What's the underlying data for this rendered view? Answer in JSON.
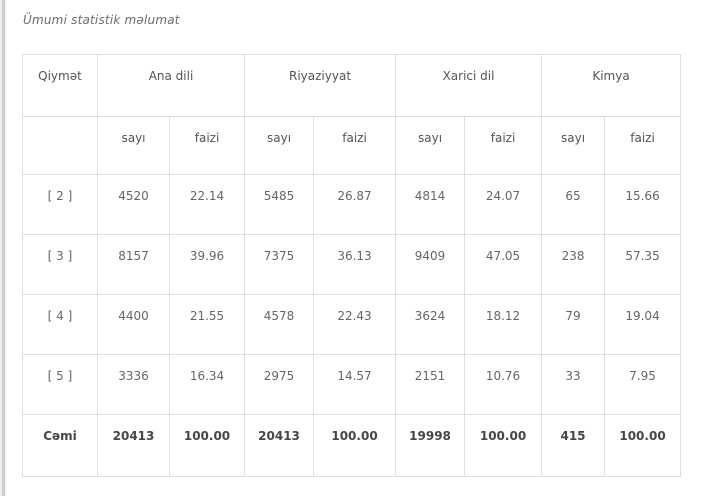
{
  "page": {
    "title": "Ümumi statistik məlumat"
  },
  "table": {
    "grade_column_header": "Qiymət",
    "subject_groups": [
      {
        "label": "Ana dili"
      },
      {
        "label": "Riyaziyyat"
      },
      {
        "label": "Xarici dil"
      },
      {
        "label": "Kimya"
      }
    ],
    "subheaders": {
      "count": "sayı",
      "percent": "faizi"
    },
    "rows": [
      {
        "grade": "[ 2 ]",
        "bold": false,
        "values": [
          "4520",
          "22.14",
          "5485",
          "26.87",
          "4814",
          "24.07",
          "65",
          "15.66"
        ]
      },
      {
        "grade": "[ 3 ]",
        "bold": false,
        "values": [
          "8157",
          "39.96",
          "7375",
          "36.13",
          "9409",
          "47.05",
          "238",
          "57.35"
        ]
      },
      {
        "grade": "[ 4 ]",
        "bold": false,
        "values": [
          "4400",
          "21.55",
          "4578",
          "22.43",
          "3624",
          "18.12",
          "79",
          "19.04"
        ]
      },
      {
        "grade": "[ 5 ]",
        "bold": false,
        "values": [
          "3336",
          "16.34",
          "2975",
          "14.57",
          "2151",
          "10.76",
          "33",
          "7.95"
        ]
      },
      {
        "grade": "Cəmi",
        "bold": true,
        "values": [
          "20413",
          "100.00",
          "20413",
          "100.00",
          "19998",
          "100.00",
          "415",
          "100.00"
        ]
      }
    ],
    "colors": {
      "border": "#dfdfdf",
      "text": "#666666",
      "header_text": "#555555",
      "total_text": "#464646",
      "title_text": "#6d6d6d",
      "background": "#ffffff",
      "left_edge": "#cccccc"
    }
  }
}
